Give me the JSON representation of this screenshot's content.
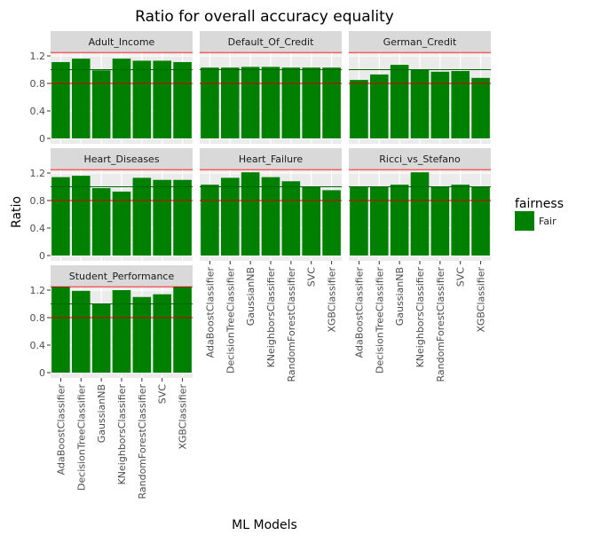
{
  "chart_data": {
    "type": "bar",
    "title": "Ratio for overall accuracy equality",
    "xlabel": "ML Models",
    "ylabel": "Ratio",
    "categories": [
      "AdaBoostClassifier",
      "DecisionTreeClassifier",
      "GaussianNB",
      "KNeighborsClassifier",
      "RandomForestClassifier",
      "SVC",
      "XGBClassifier"
    ],
    "ylim": [
      0,
      1.5
    ],
    "yticks": [
      0,
      0.4,
      0.8,
      1.2
    ],
    "ytick_labels": [
      "0",
      "0.4",
      "0.8",
      "1.2"
    ],
    "reference_lines": {
      "fair_center": 1.0,
      "lower_bound": 0.8,
      "upper_bound": 1.25
    },
    "colors": {
      "bar": "#008000",
      "fair_line": "#006400",
      "bound_line": "#dd0000",
      "panel_bg": "#ebebeb",
      "strip_bg": "#d9d9d9",
      "grid": "#ffffff"
    },
    "legend": {
      "title": "fairness",
      "entries": [
        {
          "label": "Fair",
          "color": "#008000"
        }
      ],
      "placement": "right"
    },
    "grid": true,
    "facets": [
      {
        "name": "Adult_Income",
        "values": [
          1.11,
          1.16,
          0.99,
          1.16,
          1.13,
          1.13,
          1.11
        ]
      },
      {
        "name": "Default_Of_Credit",
        "values": [
          1.03,
          1.03,
          1.04,
          1.04,
          1.03,
          1.03,
          1.03
        ]
      },
      {
        "name": "German_Credit",
        "values": [
          0.85,
          0.93,
          1.07,
          1.0,
          0.97,
          0.98,
          0.88
        ]
      },
      {
        "name": "Heart_Diseases",
        "values": [
          1.14,
          1.16,
          0.98,
          0.93,
          1.13,
          1.1,
          1.1
        ]
      },
      {
        "name": "Heart_Failure",
        "values": [
          1.03,
          1.13,
          1.21,
          1.14,
          1.08,
          1.0,
          0.95
        ]
      },
      {
        "name": "Ricci_vs_Stefano",
        "values": [
          1.0,
          1.0,
          1.03,
          1.21,
          1.0,
          1.03,
          1.0
        ]
      },
      {
        "name": "Student_Performance",
        "values": [
          1.25,
          1.19,
          1.0,
          1.2,
          1.1,
          1.14,
          1.25
        ]
      }
    ]
  }
}
